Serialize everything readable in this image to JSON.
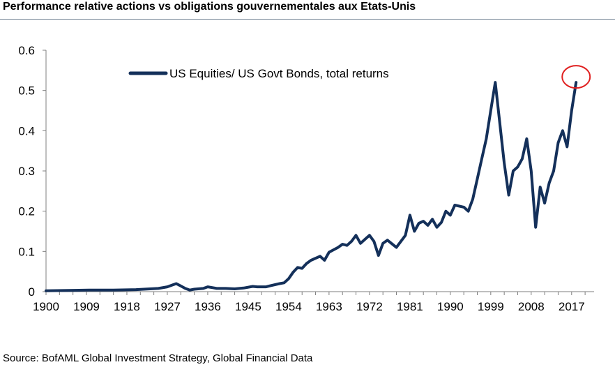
{
  "title": "Performance relative actions vs obligations gouvernementales aux Etats-Unis",
  "source": "Source: BofAML Global Investment Strategy, Global Financial Data",
  "colors": {
    "line": "#14305a",
    "highlight_circle": "#e02020",
    "axis": "#7f7f7f"
  },
  "chart_data": {
    "type": "line",
    "title": "Performance relative actions vs obligations gouvernementales aux Etats-Unis",
    "xlabel": "",
    "ylabel": "",
    "xlim": [
      1900,
      2022
    ],
    "ylim": [
      0,
      0.6
    ],
    "x_ticks": [
      "1900",
      "1909",
      "1918",
      "1927",
      "1936",
      "1945",
      "1954",
      "1963",
      "1972",
      "1981",
      "1990",
      "1999",
      "2008",
      "2017"
    ],
    "y_ticks": [
      "0",
      "0.1",
      "0.2",
      "0.3",
      "0.4",
      "0.5",
      "0.6"
    ],
    "grid": false,
    "legend_position": "top-left",
    "series": [
      {
        "name": "US Equities/ US Govt Bonds, total returns",
        "x": [
          1900,
          1905,
          1910,
          1915,
          1920,
          1925,
          1927,
          1928,
          1929,
          1930,
          1931,
          1932,
          1933,
          1935,
          1936,
          1937,
          1938,
          1940,
          1942,
          1944,
          1946,
          1947,
          1949,
          1950,
          1952,
          1953,
          1954,
          1955,
          1956,
          1957,
          1958,
          1959,
          1961,
          1962,
          1963,
          1965,
          1966,
          1967,
          1968,
          1969,
          1970,
          1971,
          1972,
          1973,
          1974,
          1975,
          1976,
          1978,
          1980,
          1981,
          1982,
          1983,
          1984,
          1985,
          1986,
          1987,
          1988,
          1989,
          1990,
          1991,
          1993,
          1994,
          1995,
          1996,
          1997,
          1998,
          1999,
          2000,
          2001,
          2002,
          2003,
          2004,
          2005,
          2006,
          2007,
          2008,
          2009,
          2010,
          2011,
          2012,
          2013,
          2014,
          2015,
          2016,
          2017,
          2018
        ],
        "y": [
          0.002,
          0.003,
          0.004,
          0.004,
          0.005,
          0.008,
          0.012,
          0.016,
          0.02,
          0.014,
          0.008,
          0.004,
          0.006,
          0.008,
          0.012,
          0.01,
          0.008,
          0.008,
          0.007,
          0.009,
          0.013,
          0.012,
          0.012,
          0.015,
          0.02,
          0.022,
          0.032,
          0.048,
          0.06,
          0.058,
          0.07,
          0.078,
          0.088,
          0.078,
          0.098,
          0.11,
          0.118,
          0.115,
          0.125,
          0.14,
          0.12,
          0.13,
          0.14,
          0.125,
          0.09,
          0.12,
          0.128,
          0.11,
          0.14,
          0.19,
          0.15,
          0.17,
          0.175,
          0.165,
          0.18,
          0.16,
          0.172,
          0.2,
          0.19,
          0.215,
          0.21,
          0.2,
          0.23,
          0.28,
          0.33,
          0.38,
          0.45,
          0.52,
          0.42,
          0.32,
          0.24,
          0.3,
          0.31,
          0.33,
          0.38,
          0.3,
          0.16,
          0.26,
          0.22,
          0.27,
          0.3,
          0.37,
          0.4,
          0.36,
          0.45,
          0.52
        ]
      }
    ],
    "annotations": [
      {
        "type": "circle",
        "x": 2018,
        "y": 0.52
      }
    ]
  }
}
